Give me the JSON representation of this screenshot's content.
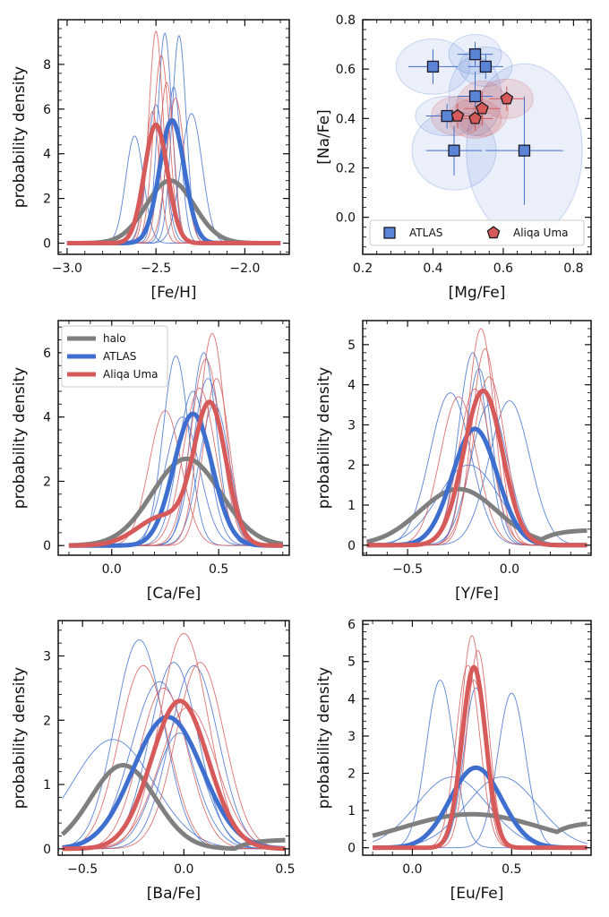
{
  "colors": {
    "halo": "#7f7f7f",
    "atlas": "#3f6fce",
    "aliqa": "#d65a5a",
    "atlas_fill": "#5b84d6",
    "aliqa_fill": "#d65a5a"
  },
  "chart_data": [
    {
      "id": "feh",
      "type": "line",
      "xlabel": "[Fe/H]",
      "ylabel": "probability density",
      "xlim": [
        -3.05,
        -1.75
      ],
      "ylim": [
        -0.5,
        10
      ],
      "xticks": [
        -3.0,
        -2.5,
        -2.0
      ],
      "xticklabels": [
        "−3.0",
        "−2.5",
        "−2.0"
      ],
      "yticks": [
        0,
        2,
        4,
        6,
        8
      ],
      "yticklabels": [
        "0",
        "2",
        "4",
        "6",
        "8"
      ],
      "xrange": [
        -3.0,
        -1.8
      ],
      "series": [
        {
          "name": "halo",
          "kind": "halo",
          "mu": -2.42,
          "sigma": 0.135,
          "peak": 2.8
        },
        {
          "name": "ATLAS",
          "kind": "atlas",
          "mu": -2.41,
          "sigma": 0.07,
          "peak": 5.5
        },
        {
          "name": "Aliqa Uma",
          "kind": "aliqa",
          "mu": -2.5,
          "sigma": 0.065,
          "peak": 5.3
        }
      ],
      "thin": [
        {
          "kind": "atlas",
          "mu": -2.62,
          "sigma": 0.05,
          "peak": 4.8
        },
        {
          "kind": "atlas",
          "mu": -2.45,
          "sigma": 0.04,
          "peak": 9.4
        },
        {
          "kind": "atlas",
          "mu": -2.37,
          "sigma": 0.04,
          "peak": 9.3
        },
        {
          "kind": "atlas",
          "mu": -2.4,
          "sigma": 0.04,
          "peak": 7.0
        },
        {
          "kind": "atlas",
          "mu": -2.3,
          "sigma": 0.06,
          "peak": 5.8
        },
        {
          "kind": "atlas",
          "mu": -2.5,
          "sigma": 0.05,
          "peak": 6.2
        },
        {
          "kind": "aliqa",
          "mu": -2.5,
          "sigma": 0.04,
          "peak": 9.5
        },
        {
          "kind": "aliqa",
          "mu": -2.47,
          "sigma": 0.045,
          "peak": 8.4
        },
        {
          "kind": "aliqa",
          "mu": -2.44,
          "sigma": 0.04,
          "peak": 7.2
        },
        {
          "kind": "aliqa",
          "mu": -2.52,
          "sigma": 0.04,
          "peak": 5.9
        },
        {
          "kind": "aliqa",
          "mu": -2.39,
          "sigma": 0.05,
          "peak": 6.5
        }
      ]
    },
    {
      "id": "mgna",
      "type": "scatter",
      "xlabel": "[Mg/Fe]",
      "ylabel": "[Na/Fe]",
      "xlim": [
        0.2,
        0.85
      ],
      "ylim": [
        -0.15,
        0.8
      ],
      "xticks": [
        0.2,
        0.4,
        0.6,
        0.8
      ],
      "xticklabels": [
        "0.2",
        "0.4",
        "0.6",
        "0.8"
      ],
      "yticks": [
        0.0,
        0.2,
        0.4,
        0.6,
        0.8
      ],
      "yticklabels": [
        "0.0",
        "0.2",
        "0.4",
        "0.6",
        "0.8"
      ],
      "legend": {
        "items": [
          "ATLAS",
          "Aliqa Uma"
        ],
        "placement": "lower"
      },
      "series": [
        {
          "name": "ATLAS",
          "kind": "atlas",
          "marker": "square",
          "points": [
            {
              "x": 0.4,
              "y": 0.61,
              "xerr": 0.07,
              "yerr": 0.07
            },
            {
              "x": 0.52,
              "y": 0.66,
              "xerr": 0.05,
              "yerr": 0.05
            },
            {
              "x": 0.55,
              "y": 0.61,
              "xerr": 0.05,
              "yerr": 0.05
            },
            {
              "x": 0.52,
              "y": 0.49,
              "xerr": 0.05,
              "yerr": 0.1
            },
            {
              "x": 0.44,
              "y": 0.41,
              "xerr": 0.06,
              "yerr": 0.05
            },
            {
              "x": 0.46,
              "y": 0.27,
              "xerr": 0.08,
              "yerr": 0.1
            },
            {
              "x": 0.66,
              "y": 0.27,
              "xerr": 0.11,
              "yerr": 0.22
            }
          ]
        },
        {
          "name": "Aliqa Uma",
          "kind": "aliqa",
          "marker": "pentagon",
          "points": [
            {
              "x": 0.47,
              "y": 0.41,
              "xerr": 0.05,
              "yerr": 0.05
            },
            {
              "x": 0.52,
              "y": 0.4,
              "xerr": 0.05,
              "yerr": 0.05
            },
            {
              "x": 0.54,
              "y": 0.44,
              "xerr": 0.05,
              "yerr": 0.07
            },
            {
              "x": 0.61,
              "y": 0.48,
              "xerr": 0.05,
              "yerr": 0.05
            }
          ]
        }
      ]
    },
    {
      "id": "cafe",
      "type": "line",
      "xlabel": "[Ca/Fe]",
      "ylabel": "probability density",
      "xlim": [
        -0.25,
        0.83
      ],
      "ylim": [
        -0.3,
        7
      ],
      "xticks": [
        0.0,
        0.5
      ],
      "xticklabels": [
        "0.0",
        "0.5"
      ],
      "yticks": [
        0,
        2,
        4,
        6
      ],
      "yticklabels": [
        "0",
        "2",
        "4",
        "6"
      ],
      "xrange": [
        -0.2,
        0.8
      ],
      "legend": {
        "items": [
          "halo",
          "ATLAS",
          "Aliqa Uma"
        ],
        "placement": "top-left"
      },
      "series": [
        {
          "name": "halo",
          "kind": "halo",
          "mu": 0.35,
          "sigma": 0.16,
          "peak": 2.7
        },
        {
          "name": "ATLAS",
          "kind": "atlas",
          "mu": 0.38,
          "sigma": 0.09,
          "peak": 4.1
        },
        {
          "name": "Aliqa Uma",
          "kind": "aliqa",
          "mu": 0.46,
          "sigma": 0.075,
          "peak": 4.3,
          "tail": {
            "mu": 0.24,
            "sigma": 0.12,
            "peak": 0.9
          }
        }
      ],
      "thin": [
        {
          "kind": "atlas",
          "mu": 0.3,
          "sigma": 0.06,
          "peak": 5.9
        },
        {
          "kind": "atlas",
          "mu": 0.43,
          "sigma": 0.06,
          "peak": 6.0
        },
        {
          "kind": "atlas",
          "mu": 0.38,
          "sigma": 0.07,
          "peak": 4.8
        },
        {
          "kind": "atlas",
          "mu": 0.45,
          "sigma": 0.07,
          "peak": 5.2
        },
        {
          "kind": "atlas",
          "mu": 0.33,
          "sigma": 0.08,
          "peak": 4.0
        },
        {
          "kind": "atlas",
          "mu": 0.48,
          "sigma": 0.07,
          "peak": 4.4
        },
        {
          "kind": "aliqa",
          "mu": 0.25,
          "sigma": 0.075,
          "peak": 4.2
        },
        {
          "kind": "aliqa",
          "mu": 0.47,
          "sigma": 0.06,
          "peak": 6.6
        },
        {
          "kind": "aliqa",
          "mu": 0.44,
          "sigma": 0.07,
          "peak": 5.8
        },
        {
          "kind": "aliqa",
          "mu": 0.41,
          "sigma": 0.075,
          "peak": 4.9
        },
        {
          "kind": "aliqa",
          "mu": 0.49,
          "sigma": 0.06,
          "peak": 5.2
        }
      ]
    },
    {
      "id": "yfe",
      "type": "line",
      "xlabel": "[Y/Fe]",
      "ylabel": "probability density",
      "xlim": [
        -0.72,
        0.4
      ],
      "ylim": [
        -0.25,
        5.6
      ],
      "xticks": [
        -0.5,
        0.0
      ],
      "xticklabels": [
        "−0.5",
        "0.0"
      ],
      "yticks": [
        0,
        1,
        2,
        3,
        4,
        5
      ],
      "yticklabels": [
        "0",
        "1",
        "2",
        "3",
        "4",
        "5"
      ],
      "xrange": [
        -0.7,
        0.38
      ],
      "series": [
        {
          "name": "halo",
          "kind": "halo",
          "mu": -0.25,
          "sigma": 0.19,
          "peak": 1.4,
          "plateau": 0.38,
          "plateauStart": 0.12
        },
        {
          "name": "ATLAS",
          "kind": "atlas",
          "mu": -0.17,
          "sigma": 0.11,
          "peak": 2.9
        },
        {
          "name": "Aliqa Uma",
          "kind": "aliqa",
          "mu": -0.13,
          "sigma": 0.095,
          "peak": 3.85
        }
      ],
      "thin": [
        {
          "kind": "atlas",
          "mu": -0.29,
          "sigma": 0.1,
          "peak": 3.8
        },
        {
          "kind": "atlas",
          "mu": 0.0,
          "sigma": 0.1,
          "peak": 3.6
        },
        {
          "kind": "atlas",
          "mu": -0.18,
          "sigma": 0.07,
          "peak": 4.8
        },
        {
          "kind": "atlas",
          "mu": -0.15,
          "sigma": 0.065,
          "peak": 4.4
        },
        {
          "kind": "atlas",
          "mu": -0.2,
          "sigma": 0.15,
          "peak": 2.0
        },
        {
          "kind": "atlas",
          "mu": -0.1,
          "sigma": 0.09,
          "peak": 3.5
        },
        {
          "kind": "aliqa",
          "mu": -0.14,
          "sigma": 0.065,
          "peak": 5.4
        },
        {
          "kind": "aliqa",
          "mu": -0.12,
          "sigma": 0.065,
          "peak": 4.9
        },
        {
          "kind": "aliqa",
          "mu": -0.25,
          "sigma": 0.09,
          "peak": 3.7
        },
        {
          "kind": "aliqa",
          "mu": -0.1,
          "sigma": 0.08,
          "peak": 4.2
        },
        {
          "kind": "aliqa",
          "mu": -0.17,
          "sigma": 0.08,
          "peak": 3.9
        }
      ]
    },
    {
      "id": "bafe",
      "type": "line",
      "xlabel": "[Ba/Fe]",
      "ylabel": "probability density",
      "xlim": [
        -0.62,
        0.52
      ],
      "ylim": [
        -0.1,
        3.55
      ],
      "xticks": [
        -0.5,
        0.0,
        0.5
      ],
      "xticklabels": [
        "−0.5",
        "0.0",
        "0.5"
      ],
      "yticks": [
        0,
        1,
        2,
        3
      ],
      "yticklabels": [
        "0",
        "1",
        "2",
        "3"
      ],
      "xrange": [
        -0.6,
        0.5
      ],
      "series": [
        {
          "name": "halo",
          "kind": "halo",
          "mu": -0.3,
          "sigma": 0.16,
          "peak": 1.3,
          "plateau": 0.14,
          "plateauStart": 0.25
        },
        {
          "name": "ATLAS",
          "kind": "atlas",
          "mu": -0.08,
          "sigma": 0.17,
          "peak": 2.05
        },
        {
          "name": "Aliqa Uma",
          "kind": "aliqa",
          "mu": -0.02,
          "sigma": 0.14,
          "peak": 2.3
        }
      ],
      "thin": [
        {
          "kind": "atlas",
          "mu": -0.35,
          "sigma": 0.2,
          "peak": 1.7
        },
        {
          "kind": "atlas",
          "mu": -0.22,
          "sigma": 0.12,
          "peak": 3.25
        },
        {
          "kind": "atlas",
          "mu": -0.05,
          "sigma": 0.12,
          "peak": 2.9
        },
        {
          "kind": "atlas",
          "mu": 0.05,
          "sigma": 0.12,
          "peak": 2.85
        },
        {
          "kind": "atlas",
          "mu": -0.12,
          "sigma": 0.14,
          "peak": 2.6
        },
        {
          "kind": "atlas",
          "mu": -0.02,
          "sigma": 0.12,
          "peak": 1.8
        },
        {
          "kind": "aliqa",
          "mu": 0.0,
          "sigma": 0.12,
          "peak": 3.35
        },
        {
          "kind": "aliqa",
          "mu": -0.2,
          "sigma": 0.12,
          "peak": 2.85
        },
        {
          "kind": "aliqa",
          "mu": 0.08,
          "sigma": 0.12,
          "peak": 2.9
        },
        {
          "kind": "aliqa",
          "mu": -0.1,
          "sigma": 0.12,
          "peak": 2.5
        },
        {
          "kind": "aliqa",
          "mu": 0.02,
          "sigma": 0.14,
          "peak": 2.2
        }
      ]
    },
    {
      "id": "eufe",
      "type": "line",
      "xlabel": "[Eu/Fe]",
      "ylabel": "probability density",
      "xlim": [
        -0.25,
        0.9
      ],
      "ylim": [
        -0.2,
        6.1
      ],
      "xticks": [
        0.0,
        0.5
      ],
      "xticklabels": [
        "0.0",
        "0.5"
      ],
      "yticks": [
        0,
        1,
        2,
        3,
        4,
        5,
        6
      ],
      "yticklabels": [
        "0",
        "1",
        "2",
        "3",
        "4",
        "5",
        "6"
      ],
      "xrange": [
        -0.2,
        0.88
      ],
      "series": [
        {
          "name": "halo",
          "kind": "halo",
          "mu": 0.3,
          "sigma": 0.35,
          "peak": 0.9,
          "plateau": 0.68,
          "plateauStart": 0.65
        },
        {
          "name": "ATLAS",
          "kind": "atlas",
          "mu": 0.32,
          "sigma": 0.13,
          "peak": 2.15
        },
        {
          "name": "Aliqa Uma",
          "kind": "aliqa",
          "mu": 0.31,
          "sigma": 0.06,
          "peak": 4.85
        }
      ],
      "thin": [
        {
          "kind": "atlas",
          "mu": 0.14,
          "sigma": 0.07,
          "peak": 4.5
        },
        {
          "kind": "atlas",
          "mu": 0.5,
          "sigma": 0.07,
          "peak": 4.15
        },
        {
          "kind": "atlas",
          "mu": 0.2,
          "sigma": 0.18,
          "peak": 1.9
        },
        {
          "kind": "atlas",
          "mu": 0.45,
          "sigma": 0.18,
          "peak": 1.9
        },
        {
          "kind": "atlas",
          "mu": 0.32,
          "sigma": 0.06,
          "peak": 4.3
        },
        {
          "kind": "aliqa",
          "mu": 0.3,
          "sigma": 0.055,
          "peak": 5.7
        },
        {
          "kind": "aliqa",
          "mu": 0.33,
          "sigma": 0.055,
          "peak": 5.3
        },
        {
          "kind": "aliqa",
          "mu": 0.28,
          "sigma": 0.06,
          "peak": 4.9
        },
        {
          "kind": "aliqa",
          "mu": 0.31,
          "sigma": 0.065,
          "peak": 4.5
        }
      ]
    }
  ]
}
